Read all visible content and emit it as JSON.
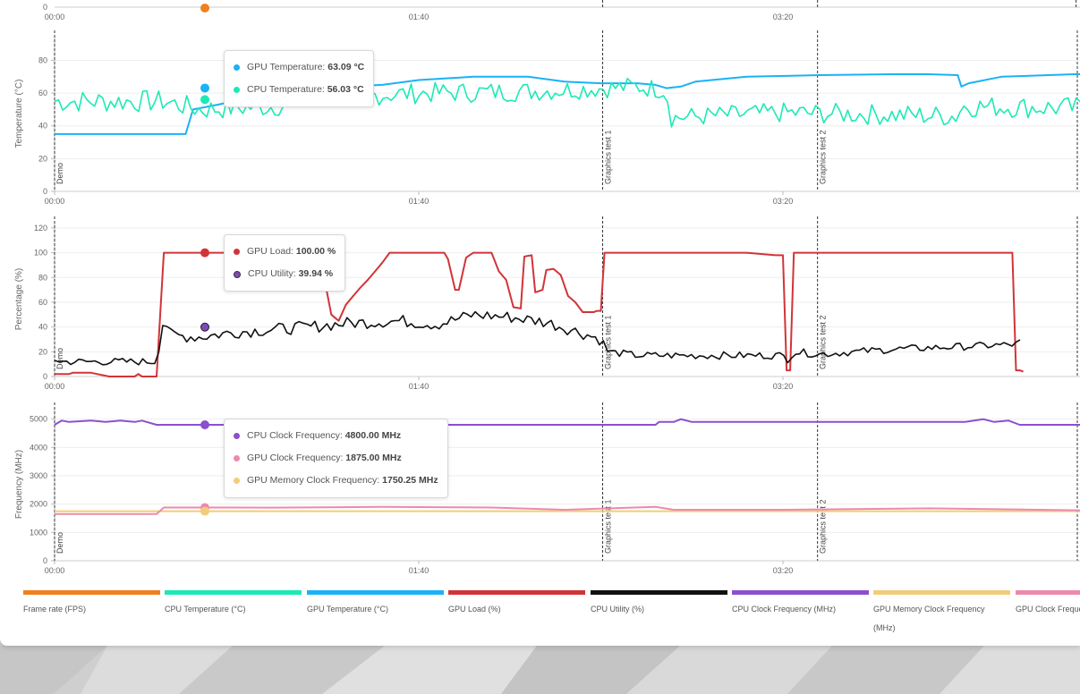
{
  "colors": {
    "fps": "#f07f1e",
    "cpu_temp": "#1de9b6",
    "gpu_temp": "#1ab2f5",
    "gpu_load": "#d13438",
    "cpu_util": "#111111",
    "cpu_clock": "#8c4fd0",
    "gpu_mem_clock": "#f2cc7a",
    "gpu_clock": "#ec8aae"
  },
  "x_ticks": [
    "00:00",
    "01:40",
    "03:20"
  ],
  "markers": [
    "Demo",
    "Graphics test 1",
    "Graphics test 2"
  ],
  "chart_data": [
    {
      "type": "line",
      "title": "",
      "ylabel": "",
      "y_ticks": [
        0
      ],
      "series": [
        {
          "name": "Frame rate (FPS)",
          "values": [
            0
          ]
        }
      ]
    },
    {
      "type": "line",
      "ylabel": "Temperature (°C)",
      "ylim": [
        0,
        95
      ],
      "y_ticks": [
        0,
        20,
        40,
        60,
        80
      ],
      "x_range_seconds": [
        0,
        281
      ],
      "series": [
        {
          "name": "GPU Temperature (°C)",
          "points": [
            [
              0,
              35
            ],
            [
              36,
              35
            ],
            [
              38,
              50
            ],
            [
              45,
              53
            ],
            [
              55,
              58
            ],
            [
              70,
              63
            ],
            [
              90,
              65
            ],
            [
              100,
              68
            ],
            [
              115,
              70
            ],
            [
              130,
              70
            ],
            [
              140,
              67
            ],
            [
              150,
              66
            ],
            [
              160,
              66
            ],
            [
              165,
              65
            ],
            [
              168,
              63
            ],
            [
              172,
              64
            ],
            [
              176,
              67
            ],
            [
              190,
              70
            ],
            [
              210,
              71
            ],
            [
              230,
              71.5
            ],
            [
              240,
              71.5
            ],
            [
              248,
              71
            ],
            [
              249,
              64
            ],
            [
              251,
              66
            ],
            [
              260,
              70
            ],
            [
              280,
              71.5
            ],
            [
              298,
              71.5
            ],
            [
              302,
              70
            ],
            [
              303,
              63
            ],
            [
              305,
              57
            ]
          ]
        },
        {
          "name": "CPU Temperature (°C)",
          "pattern": "noisy",
          "base": [
            [
              0,
              55
            ],
            [
              30,
              55
            ],
            [
              40,
              50
            ],
            [
              60,
              52
            ],
            [
              80,
              58
            ],
            [
              100,
              60
            ],
            [
              130,
              61
            ],
            [
              160,
              64
            ],
            [
              168,
              62
            ],
            [
              169,
              45
            ],
            [
              200,
              48
            ],
            [
              248,
              46
            ],
            [
              249,
              52
            ],
            [
              305,
              50
            ]
          ],
          "amp": [
            [
              0,
              7
            ],
            [
              168,
              6
            ],
            [
              169,
              6
            ],
            [
              305,
              7
            ]
          ]
        }
      ]
    },
    {
      "type": "line",
      "ylabel": "Percentage (%)",
      "ylim": [
        0,
        125
      ],
      "y_ticks": [
        0,
        20,
        40,
        60,
        80,
        100,
        120
      ],
      "series": [
        {
          "name": "GPU Load (%)",
          "points": [
            [
              0,
              2
            ],
            [
              4,
              2
            ],
            [
              5,
              3
            ],
            [
              10,
              3
            ],
            [
              15,
              0
            ],
            [
              22,
              0
            ],
            [
              23,
              2
            ],
            [
              24,
              0
            ],
            [
              28,
              0
            ],
            [
              30,
              100
            ],
            [
              60,
              100
            ],
            [
              73,
              100
            ],
            [
              74,
              80
            ],
            [
              76,
              50
            ],
            [
              78,
              45
            ],
            [
              80,
              58
            ],
            [
              82,
              65
            ],
            [
              84,
              72
            ],
            [
              86,
              78
            ],
            [
              88,
              85
            ],
            [
              90,
              92
            ],
            [
              92,
              100
            ],
            [
              106,
              100
            ],
            [
              107,
              100
            ],
            [
              108,
              95
            ],
            [
              110,
              70
            ],
            [
              111,
              70
            ],
            [
              113,
              96
            ],
            [
              115,
              100
            ],
            [
              120,
              100
            ],
            [
              122,
              85
            ],
            [
              124,
              78
            ],
            [
              126,
              56
            ],
            [
              128,
              55
            ],
            [
              129,
              97
            ],
            [
              131,
              98
            ],
            [
              132,
              68
            ],
            [
              134,
              70
            ],
            [
              135,
              86
            ],
            [
              137,
              87
            ],
            [
              139,
              82
            ],
            [
              141,
              65
            ],
            [
              143,
              60
            ],
            [
              145,
              52
            ],
            [
              148,
              52
            ],
            [
              149,
              53
            ],
            [
              150,
              53
            ],
            [
              151,
              100
            ],
            [
              152,
              100
            ],
            [
              190,
              100
            ],
            [
              198,
              98
            ],
            [
              200,
              98
            ],
            [
              201,
              5
            ],
            [
              202,
              5
            ],
            [
              203,
              100
            ],
            [
              204,
              100
            ],
            [
              260,
              100
            ],
            [
              263,
              100
            ],
            [
              264,
              5
            ],
            [
              265,
              5
            ],
            [
              266,
              4
            ]
          ]
        },
        {
          "name": "CPU Utility (%)",
          "pattern": "noisy",
          "base": [
            [
              0,
              14
            ],
            [
              2,
              12
            ],
            [
              28,
              12
            ],
            [
              30,
              48
            ],
            [
              32,
              33
            ],
            [
              40,
              32
            ],
            [
              50,
              36
            ],
            [
              60,
              38
            ],
            [
              70,
              40
            ],
            [
              80,
              43
            ],
            [
              95,
              45
            ],
            [
              105,
              42
            ],
            [
              115,
              50
            ],
            [
              125,
              48
            ],
            [
              135,
              44
            ],
            [
              145,
              35
            ],
            [
              150,
              30
            ],
            [
              152,
              20
            ],
            [
              160,
              17
            ],
            [
              200,
              17
            ],
            [
              201,
              13
            ],
            [
              203,
              20
            ],
            [
              210,
              18
            ],
            [
              230,
              22
            ],
            [
              265,
              26
            ],
            [
              266,
              47
            ]
          ],
          "amp": [
            [
              0,
              3
            ],
            [
              28,
              3
            ],
            [
              30,
              5
            ],
            [
              150,
              5
            ],
            [
              152,
              3
            ],
            [
              266,
              3
            ]
          ]
        }
      ]
    },
    {
      "type": "line",
      "ylabel": "Frequency (MHz)",
      "ylim": [
        0,
        5400
      ],
      "y_ticks": [
        0,
        1000,
        2000,
        3000,
        4000,
        5000
      ],
      "series": [
        {
          "name": "CPU Clock Frequency (MHz)",
          "points": [
            [
              0,
              4800
            ],
            [
              2,
              4950
            ],
            [
              4,
              4900
            ],
            [
              10,
              4950
            ],
            [
              14,
              4900
            ],
            [
              18,
              4950
            ],
            [
              22,
              4900
            ],
            [
              24,
              4950
            ],
            [
              28,
              4800
            ],
            [
              50,
              4800
            ],
            [
              120,
              4800
            ],
            [
              165,
              4800
            ],
            [
              166,
              4900
            ],
            [
              170,
              4900
            ],
            [
              172,
              5000
            ],
            [
              175,
              4900
            ],
            [
              190,
              4900
            ],
            [
              200,
              4900
            ],
            [
              210,
              4900
            ],
            [
              240,
              4900
            ],
            [
              248,
              4900
            ],
            [
              250,
              4900
            ],
            [
              255,
              5000
            ],
            [
              258,
              4900
            ],
            [
              262,
              4950
            ],
            [
              265,
              4800
            ],
            [
              300,
              4800
            ]
          ]
        },
        {
          "name": "GPU Memory Clock Frequency (MHz)",
          "points": [
            [
              0,
              1750
            ],
            [
              300,
              1750
            ]
          ]
        },
        {
          "name": "GPU Clock Frequency (MHz)",
          "points": [
            [
              0,
              1650
            ],
            [
              28,
              1650
            ],
            [
              30,
              1880
            ],
            [
              60,
              1875
            ],
            [
              90,
              1900
            ],
            [
              120,
              1880
            ],
            [
              140,
              1800
            ],
            [
              165,
              1900
            ],
            [
              170,
              1800
            ],
            [
              200,
              1800
            ],
            [
              240,
              1850
            ],
            [
              300,
              1750
            ]
          ]
        }
      ]
    }
  ],
  "tooltips": {
    "temperature": [
      {
        "label": "GPU Temperature:",
        "value": "63.09 °C"
      },
      {
        "label": "CPU Temperature:",
        "value": "56.03 °C"
      }
    ],
    "percentage": [
      {
        "label": "GPU Load:",
        "value": "100.00 %"
      },
      {
        "label": "CPU Utility:",
        "value": "39.94 %"
      }
    ],
    "frequency": [
      {
        "label": "CPU Clock Frequency:",
        "value": "4800.00 MHz"
      },
      {
        "label": "GPU Clock Frequency:",
        "value": "1875.00 MHz"
      },
      {
        "label": "GPU Memory Clock Frequency:",
        "value": "1750.25 MHz"
      }
    ]
  },
  "legend": [
    {
      "label": "Frame rate (FPS)",
      "color": "#f07f1e"
    },
    {
      "label": "CPU Temperature (°C)",
      "color": "#1de9b6"
    },
    {
      "label": "GPU Temperature (°C)",
      "color": "#1ab2f5"
    },
    {
      "label": "GPU Load (%)",
      "color": "#d13438"
    },
    {
      "label": "CPU Utility (%)",
      "color": "#111111"
    },
    {
      "label": "CPU Clock Frequency (MHz)",
      "color": "#8c4fd0"
    },
    {
      "label": "GPU Memory Clock Frequency (MHz)",
      "color": "#f2cc7a"
    },
    {
      "label": "GPU Clock Frequency (MHz)",
      "color": "#ec8aae"
    }
  ]
}
